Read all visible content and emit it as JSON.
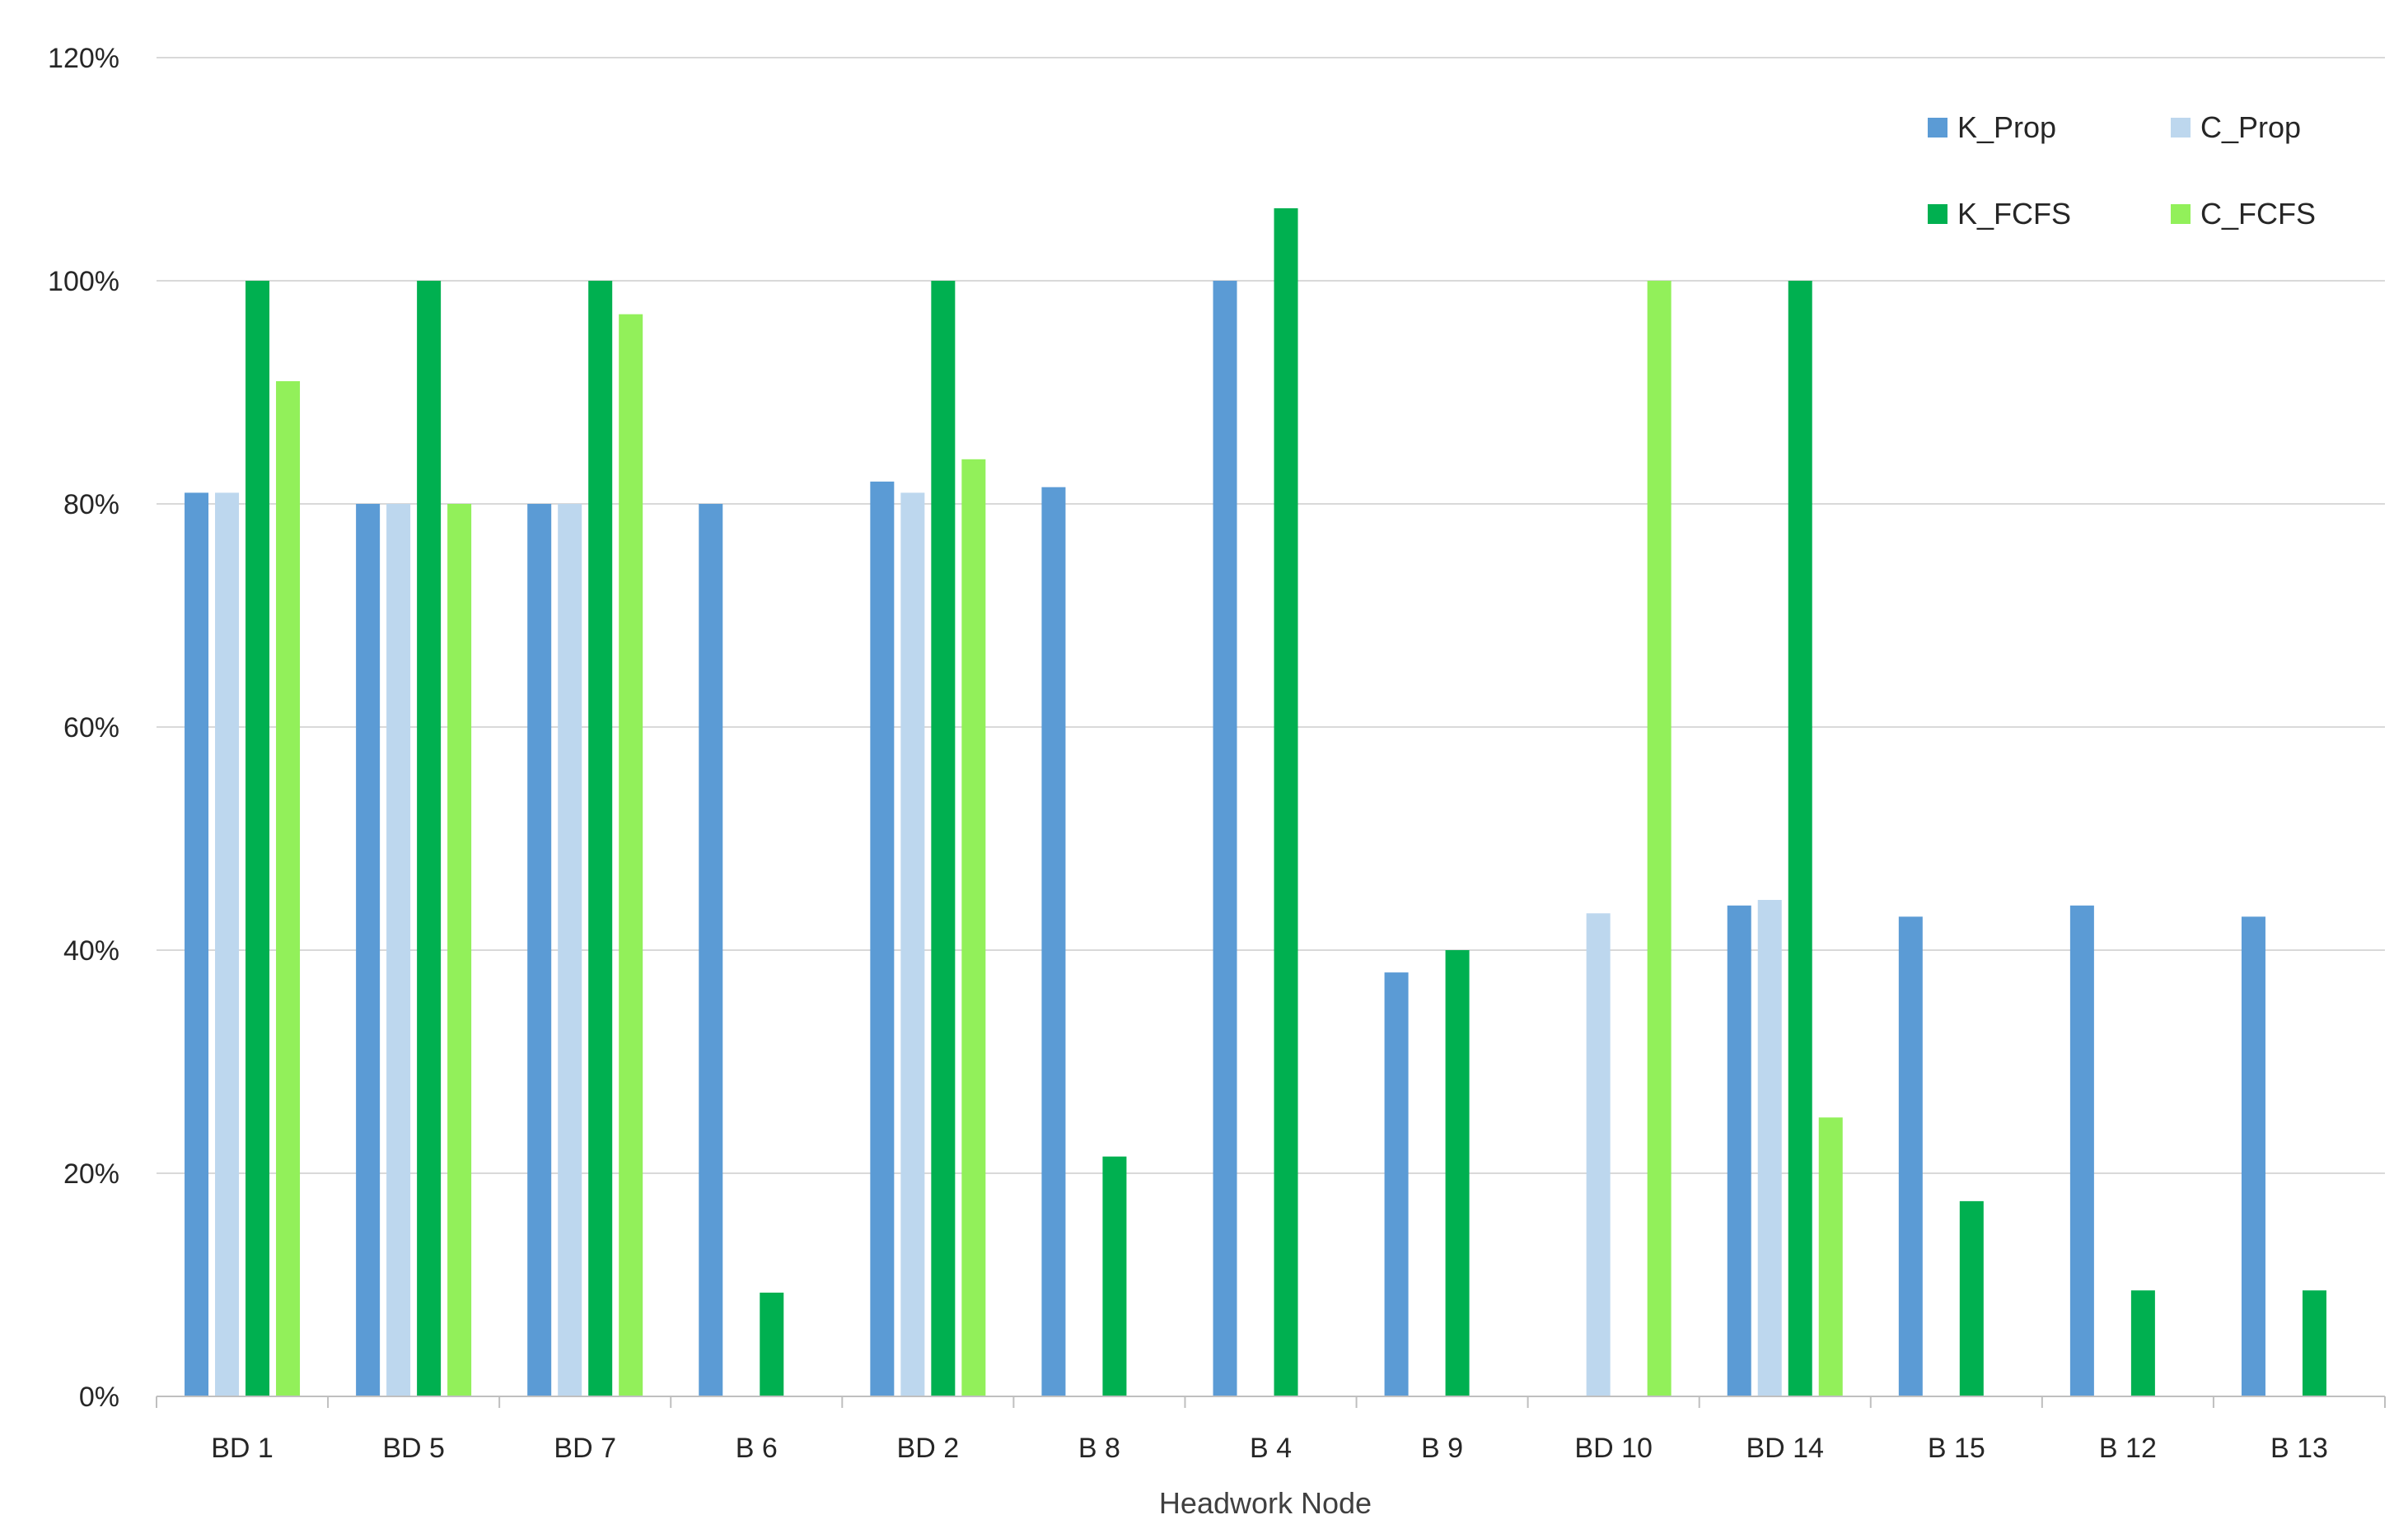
{
  "chart_data": {
    "type": "bar",
    "title": "",
    "xlabel": "Headwork Node",
    "ylabel": "",
    "ylim": [
      0,
      1.2
    ],
    "yticks": [
      0,
      0.2,
      0.4,
      0.6,
      0.8,
      1.0,
      1.2
    ],
    "ytick_labels": [
      "0%",
      "20%",
      "40%",
      "60%",
      "80%",
      "100%",
      "120%"
    ],
    "grid": true,
    "legend_position": "top-right",
    "categories": [
      "BD 1",
      "BD 5",
      "BD 7",
      "B 6",
      "BD 2",
      "B 8",
      "B 4",
      "B 9",
      "BD 10",
      "BD 14",
      "B 15",
      "B 12",
      "B 13"
    ],
    "series": [
      {
        "name": "K_Prop",
        "color": "#5b9bd5",
        "values": [
          0.81,
          0.8,
          0.8,
          0.8,
          0.82,
          0.815,
          1.0,
          0.38,
          0,
          0.44,
          0.43,
          0.44,
          0.43
        ]
      },
      {
        "name": "C_Prop",
        "color": "#bdd7ee",
        "values": [
          0.81,
          0.8,
          0.8,
          0,
          0.81,
          0,
          0,
          0,
          0.433,
          0.445,
          0,
          0,
          0
        ]
      },
      {
        "name": "K_FCFS",
        "color": "#00b050",
        "values": [
          1.0,
          1.0,
          1.0,
          0.093,
          1.0,
          0.215,
          1.065,
          0.4,
          0,
          1.0,
          0.175,
          0.095,
          0.095
        ]
      },
      {
        "name": "C_FCFS",
        "color": "#92f05a",
        "values": [
          0.91,
          0.8,
          0.97,
          0,
          0.84,
          0,
          0,
          0,
          1.0,
          0.25,
          0,
          0,
          0
        ]
      }
    ]
  },
  "colors": {
    "gridline": "#d9d9d9",
    "axis": "#bfbfbf"
  }
}
